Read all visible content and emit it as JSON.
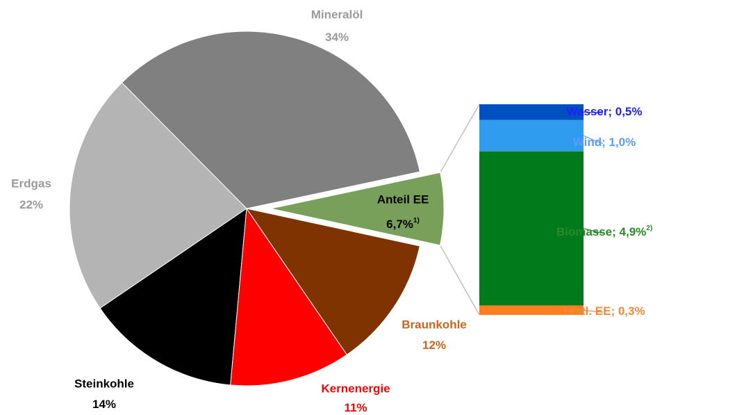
{
  "chart_data": [
    {
      "type": "pie",
      "categories": [
        "Mineralöl",
        "Erdgas",
        "Steinkohle",
        "Kernenergie",
        "Braunkohle",
        "Anteil EE"
      ],
      "values": [
        34,
        22,
        14,
        11,
        12,
        6.7
      ],
      "value_labels": [
        "34%",
        "22%",
        "14%",
        "11%",
        "12%",
        "6,7%"
      ],
      "footnotes": [
        null,
        null,
        null,
        null,
        null,
        "1)"
      ],
      "colors": [
        "#808080",
        "#b4b4b4",
        "#000000",
        "#ff0000",
        "#7f3300",
        "#78a05a"
      ],
      "label_colors": [
        "#9a9a9a",
        "#9a9a9a",
        "#000000",
        "#ff0000",
        "#c8651e",
        "#000000"
      ]
    },
    {
      "type": "stacked_bar",
      "labels": [
        "Wasser; 0,5%",
        "Wind; 1,0%",
        "Biomasse; 4,9%",
        "restl. EE; 0,3%"
      ],
      "values": [
        0.5,
        1.0,
        4.9,
        0.3
      ],
      "footnotes": [
        null,
        null,
        "2)",
        null
      ],
      "colors": [
        "#0050c0",
        "#2f9cf0",
        "#007a1a",
        "#ff7f20"
      ],
      "label_colors": [
        "#2020ff",
        "#5c9cff",
        "#2a8a2a",
        "#f08a3a"
      ]
    }
  ]
}
